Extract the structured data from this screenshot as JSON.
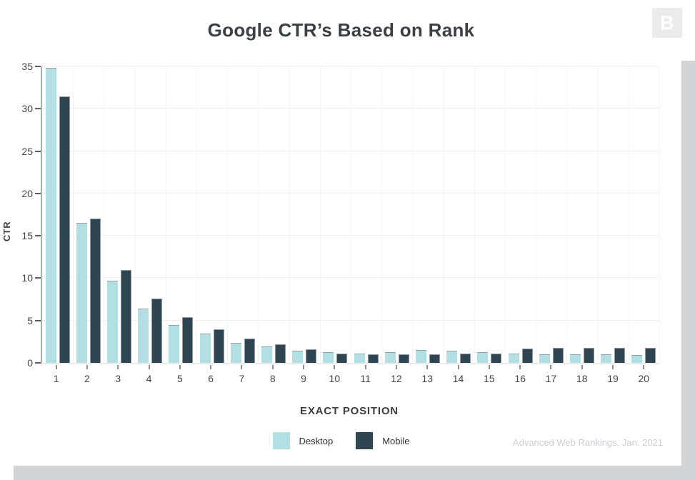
{
  "page": {
    "frame_color": "#d1d5d8",
    "card_color": "#ffffff"
  },
  "header": {
    "title": "Google CTR’s Based on Rank",
    "logo_letter": "B",
    "logo_bg": "#e9ebec"
  },
  "chart_data": {
    "type": "bar",
    "title": "Google CTR’s Based on Rank",
    "xlabel": "EXACT POSITION",
    "ylabel": "CTR",
    "categories": [
      "1",
      "2",
      "3",
      "4",
      "5",
      "6",
      "7",
      "8",
      "9",
      "10",
      "11",
      "12",
      "13",
      "14",
      "15",
      "16",
      "17",
      "18",
      "19",
      "20"
    ],
    "series": [
      {
        "name": "Desktop",
        "color": "#b2dfe2",
        "values": [
          34.8,
          16.5,
          9.7,
          6.4,
          4.5,
          3.5,
          2.4,
          1.9,
          1.4,
          1.3,
          1.1,
          1.3,
          1.5,
          1.4,
          1.3,
          1.1,
          1.0,
          1.0,
          1.0,
          0.9
        ]
      },
      {
        "name": "Mobile",
        "color": "#2f4552",
        "values": [
          31.5,
          17.0,
          11.0,
          7.6,
          5.4,
          4.0,
          2.9,
          2.2,
          1.6,
          1.1,
          1.0,
          1.0,
          1.0,
          1.1,
          1.1,
          1.7,
          1.8,
          1.8,
          1.8,
          1.8
        ]
      }
    ],
    "ylim": [
      0,
      35
    ],
    "yticks": [
      0,
      5,
      10,
      15,
      20,
      25,
      30,
      35
    ],
    "grid": true,
    "legend_position": "bottom"
  },
  "footer": {
    "attribution": "Advanced Web Rankings, Jan. 2021"
  }
}
